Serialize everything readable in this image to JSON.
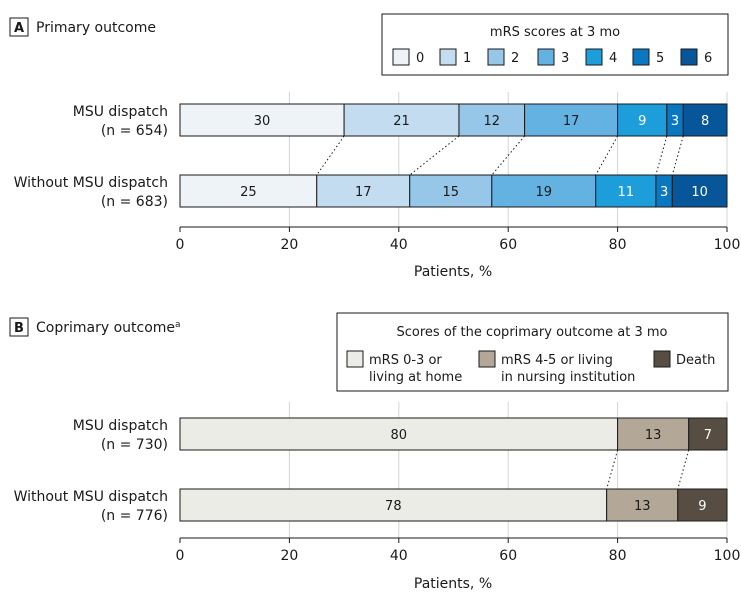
{
  "colors": {
    "mrs": [
      "#eef3f8",
      "#c3dcf0",
      "#96c6e8",
      "#64b2e2",
      "#1d9edb",
      "#0a78c0",
      "#07569a"
    ],
    "coprimary": [
      "#ecece6",
      "#b3a898",
      "#574d43"
    ],
    "seg_text_dark": "#1a1a1a",
    "seg_text_light": "#ffffff"
  },
  "panel_a": {
    "letter": "A",
    "title": "Primary outcome",
    "legend": {
      "title": "mRS  scores at 3 mo",
      "labels": [
        "0",
        "1",
        "2",
        "3",
        "4",
        "5",
        "6"
      ]
    },
    "xlabel": "Patients, %"
  },
  "panel_b": {
    "letter": "B",
    "title": "Coprimary outcome",
    "title_superscript": "a",
    "legend": {
      "title": "Scores of the coprimary outcome at 3 mo",
      "labels": [
        [
          "mRS 0-3 or",
          "living at home"
        ],
        [
          "mRS 4-5 or living",
          "in nursing institution"
        ],
        [
          "Death"
        ]
      ]
    },
    "xlabel": "Patients, %"
  },
  "chart_data": [
    {
      "type": "bar",
      "stacked": true,
      "orientation": "horizontal",
      "title": "Primary outcome",
      "legend_title": "mRS  scores at 3 mo",
      "categories": [
        [
          "MSU dispatch",
          "(n = 654)"
        ],
        [
          "Without MSU dispatch",
          "(n = 683)"
        ]
      ],
      "series": [
        {
          "name": "0",
          "values": [
            30,
            25
          ]
        },
        {
          "name": "1",
          "values": [
            21,
            17
          ]
        },
        {
          "name": "2",
          "values": [
            12,
            15
          ]
        },
        {
          "name": "3",
          "values": [
            17,
            19
          ]
        },
        {
          "name": "4",
          "values": [
            9,
            11
          ]
        },
        {
          "name": "5",
          "values": [
            3,
            3
          ]
        },
        {
          "name": "6",
          "values": [
            8,
            10
          ]
        }
      ],
      "xlabel": "Patients, %",
      "xlim": [
        0,
        100
      ],
      "xticks": [
        0,
        20,
        40,
        60,
        80,
        100
      ],
      "grid": true
    },
    {
      "type": "bar",
      "stacked": true,
      "orientation": "horizontal",
      "title": "Coprimary outcome",
      "legend_title": "Scores of the coprimary outcome at 3 mo",
      "categories": [
        [
          "MSU dispatch",
          "(n = 730)"
        ],
        [
          "Without MSU dispatch",
          "(n = 776)"
        ]
      ],
      "series": [
        {
          "name": "mRS 0-3 or living at home",
          "values": [
            80,
            78
          ]
        },
        {
          "name": "mRS 4-5 or living in nursing institution",
          "values": [
            13,
            13
          ]
        },
        {
          "name": "Death",
          "values": [
            7,
            9
          ]
        }
      ],
      "xlabel": "Patients, %",
      "xlim": [
        0,
        100
      ],
      "xticks": [
        0,
        20,
        40,
        60,
        80,
        100
      ],
      "grid": true
    }
  ]
}
